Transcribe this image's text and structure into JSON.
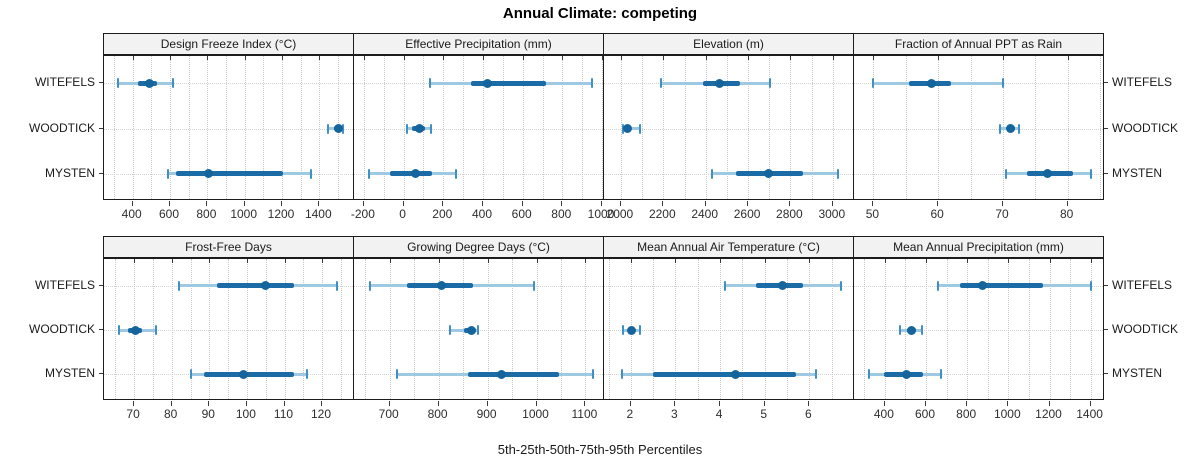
{
  "title": "Annual Climate: competing",
  "caption": "5th-25th-50th-75th-95th Percentiles",
  "sites": [
    "WITEFELS",
    "WOODTICK",
    "MYSTEN"
  ],
  "colors": {
    "range_line": "#9fc8e2",
    "whisker_cap": "#3f90c6",
    "iqr_line": "#1a6ba6",
    "median_dot": "#15659c",
    "grid": "#c9c9c9",
    "strip_bg": "#f2f2f2",
    "panel_border": "#1c1c1c"
  },
  "chart_data": {
    "type": "scatter",
    "variant": "percentile_intervals",
    "percentiles": [
      5,
      25,
      50,
      75,
      95
    ],
    "legend": "none",
    "grid": "dotted",
    "y_categories": [
      "WITEFELS",
      "WOODTICK",
      "MYSTEN"
    ],
    "panels": [
      {
        "title": "Design Freeze Index (°C)",
        "row": 0,
        "xlim": [
          246,
          1586
        ],
        "ticks": [
          400,
          600,
          800,
          1000,
          1200,
          1400
        ],
        "grid_step": 100,
        "values": {
          "WITEFELS": [
            320,
            430,
            490,
            530,
            615
          ],
          "WOODTICK": [
            1445,
            1480,
            1500,
            1515,
            1525
          ],
          "MYSTEN": [
            590,
            630,
            805,
            1205,
            1355
          ]
        }
      },
      {
        "title": "Effective Precipitation (mm)",
        "row": 0,
        "xlim": [
          -250,
          1010
        ],
        "ticks": [
          -200,
          0,
          200,
          400,
          600,
          800,
          1000
        ],
        "grid_step": 100,
        "values": {
          "WITEFELS": [
            135,
            340,
            425,
            720,
            950
          ],
          "WOODTICK": [
            15,
            40,
            80,
            110,
            140
          ],
          "MYSTEN": [
            -175,
            -70,
            60,
            145,
            265
          ]
        }
      },
      {
        "title": "Elevation (m)",
        "row": 0,
        "xlim": [
          1920,
          3100
        ],
        "ticks": [
          2000,
          2200,
          2400,
          2600,
          2800,
          3000
        ],
        "grid_step": 100,
        "values": {
          "WITEFELS": [
            2190,
            2385,
            2465,
            2560,
            2705
          ],
          "WOODTICK": [
            2008,
            2020,
            2032,
            2048,
            2090
          ],
          "MYSTEN": [
            2430,
            2545,
            2695,
            2860,
            3025
          ]
        }
      },
      {
        "title": "Fraction of Annual PPT as Rain",
        "row": 0,
        "xlim": [
          47,
          85.6
        ],
        "ticks": [
          50,
          60,
          70,
          80
        ],
        "grid_step": 5,
        "values": {
          "WITEFELS": [
            50,
            55.5,
            59,
            62,
            70
          ],
          "WOODTICK": [
            69.5,
            70.7,
            71.2,
            71.8,
            72.4
          ],
          "MYSTEN": [
            70.4,
            73.7,
            76.8,
            80.8,
            83.6
          ]
        }
      },
      {
        "title": "Frost-Free Days",
        "row": 1,
        "xlim": [
          62,
          128.5
        ],
        "ticks": [
          70,
          80,
          90,
          100,
          110,
          120
        ],
        "grid_step": 5,
        "values": {
          "WITEFELS": [
            82,
            92,
            105,
            112.5,
            124
          ],
          "WOODTICK": [
            66,
            68.5,
            70.3,
            72,
            75.8
          ],
          "MYSTEN": [
            85,
            88.5,
            99,
            112.5,
            116
          ]
        }
      },
      {
        "title": "Growing Degree Days (°C)",
        "row": 1,
        "xlim": [
          627,
          1138
        ],
        "ticks": [
          700,
          800,
          900,
          1000,
          1100
        ],
        "grid_step": 50,
        "values": {
          "WITEFELS": [
            660,
            735,
            805,
            870,
            995
          ],
          "WOODTICK": [
            823,
            852,
            868,
            876,
            880
          ],
          "MYSTEN": [
            714,
            860,
            928,
            1045,
            1115
          ]
        }
      },
      {
        "title": "Mean Annual Air Temperature (°C)",
        "row": 1,
        "xlim": [
          1.4,
          7.0
        ],
        "ticks": [
          2,
          3,
          4,
          5,
          6
        ],
        "grid_step": 0.5,
        "values": {
          "WITEFELS": [
            4.1,
            4.8,
            5.4,
            5.85,
            6.7
          ],
          "WOODTICK": [
            1.82,
            1.95,
            2.02,
            2.1,
            2.2
          ],
          "MYSTEN": [
            1.8,
            2.5,
            4.35,
            5.7,
            6.15
          ]
        }
      },
      {
        "title": "Mean Annual Precipitation (mm)",
        "row": 1,
        "xlim": [
          250,
          1465
        ],
        "ticks": [
          400,
          600,
          800,
          1000,
          1200,
          1400
        ],
        "grid_step": 100,
        "values": {
          "WITEFELS": [
            660,
            765,
            875,
            1170,
            1400
          ],
          "WOODTICK": [
            475,
            505,
            527,
            552,
            580
          ],
          "MYSTEN": [
            325,
            395,
            505,
            585,
            675
          ]
        }
      }
    ]
  }
}
